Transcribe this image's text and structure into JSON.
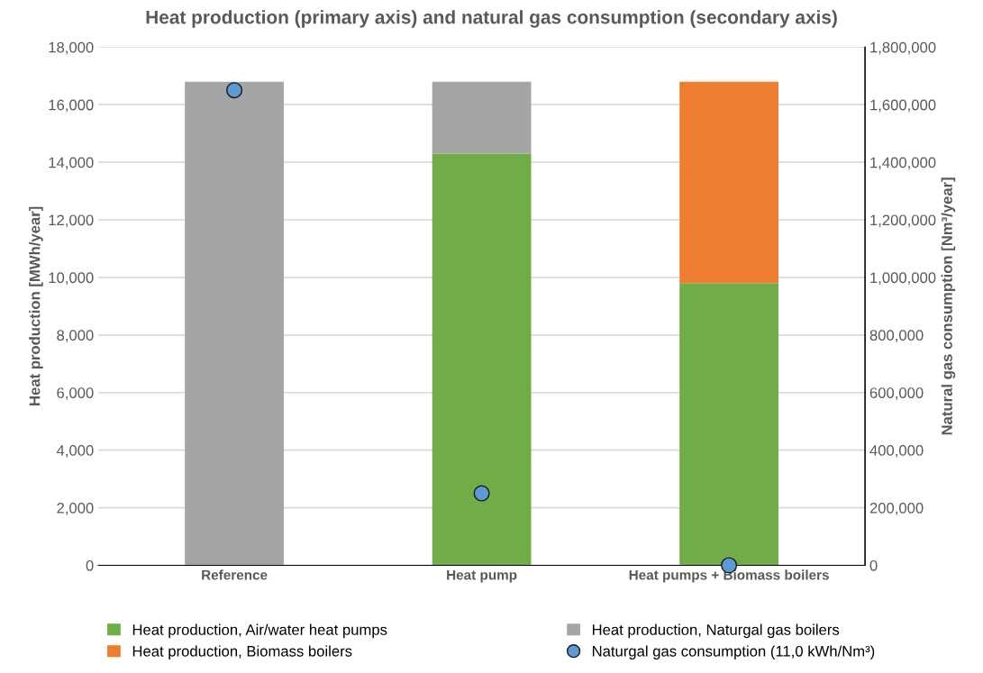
{
  "chart_data": {
    "type": "bar",
    "stacked": true,
    "title": "Heat production (primary axis) and natural gas consumption (secondary axis)",
    "ylabel": "Heat production [MWh/year]",
    "y2label": "Natural gas consumption [Nm³/year]",
    "categories": [
      "Reference",
      "Heat pump",
      "Heat pumps + Biomass boilers"
    ],
    "series": [
      {
        "name": "Heat production, Air/water heat pumps",
        "color": "#70ad47",
        "values": [
          0,
          14300,
          9800
        ]
      },
      {
        "name": "Heat production, Biomass boilers",
        "color": "#ed7d31",
        "values": [
          0,
          0,
          7000
        ]
      },
      {
        "name": "Heat production, Naturgal gas boilers",
        "color": "#a5a5a5",
        "values": [
          16800,
          2500,
          0
        ]
      },
      {
        "name": "Naturgal gas consumption (11,0 kWh/Nm³)",
        "type": "scatter",
        "axis": "y2",
        "marker": "circle",
        "color": "#5b9bd5",
        "values": [
          1650000,
          250000,
          0
        ]
      }
    ],
    "ylim": [
      0,
      18000
    ],
    "yticks": [
      {
        "value": 0,
        "label": "0"
      },
      {
        "value": 2000,
        "label": "2,000"
      },
      {
        "value": 4000,
        "label": "4,000"
      },
      {
        "value": 6000,
        "label": "6,000"
      },
      {
        "value": 8000,
        "label": "8,000"
      },
      {
        "value": 10000,
        "label": "10,000"
      },
      {
        "value": 12000,
        "label": "12,000"
      },
      {
        "value": 14000,
        "label": "14,000"
      },
      {
        "value": 16000,
        "label": "16,000"
      },
      {
        "value": 18000,
        "label": "18,000"
      }
    ],
    "y2lim": [
      0,
      1800000
    ],
    "y2ticks": [
      {
        "value": 0,
        "label": "0"
      },
      {
        "value": 200000,
        "label": "200,000"
      },
      {
        "value": 400000,
        "label": "400,000"
      },
      {
        "value": 600000,
        "label": "600,000"
      },
      {
        "value": 800000,
        "label": "800,000"
      },
      {
        "value": 1000000,
        "label": "1,000,000"
      },
      {
        "value": 1200000,
        "label": "1,200,000"
      },
      {
        "value": 1400000,
        "label": "1,400,000"
      },
      {
        "value": 1600000,
        "label": "1,600,000"
      },
      {
        "value": 1800000,
        "label": "1,800,000"
      }
    ],
    "grid": "y",
    "legend": "bottom"
  }
}
